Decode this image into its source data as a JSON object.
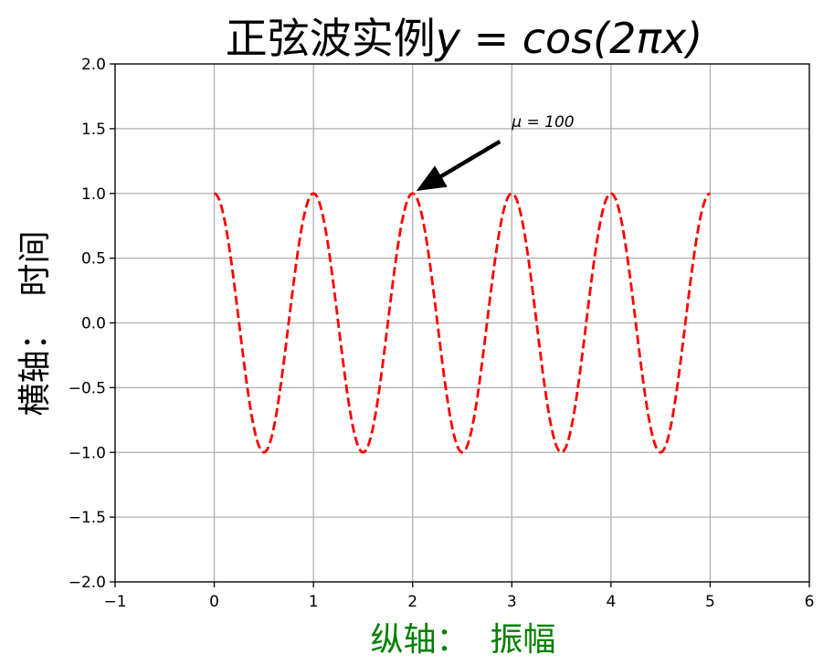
{
  "chart_data": {
    "type": "line",
    "title": "正弦波实例y = cos(2πx)",
    "title_parts": {
      "plain": "正弦波实例",
      "math": "y = cos(2πx)"
    },
    "xlabel": "纵轴：  振幅",
    "ylabel": "横轴：  时间",
    "xlim": [
      -1,
      6
    ],
    "ylim": [
      -2.0,
      2.0
    ],
    "xticks": [
      -1,
      0,
      1,
      2,
      3,
      4,
      5,
      6
    ],
    "xtick_labels": [
      "−1",
      "0",
      "1",
      "2",
      "3",
      "4",
      "5",
      "6"
    ],
    "yticks": [
      -2.0,
      -1.5,
      -1.0,
      -0.5,
      0.0,
      0.5,
      1.0,
      1.5,
      2.0
    ],
    "ytick_labels": [
      "−2.0",
      "−1.5",
      "−1.0",
      "−0.5",
      "0.0",
      "0.5",
      "1.0",
      "1.5",
      "2.0"
    ],
    "grid": true,
    "series": [
      {
        "function": "cos(2πx)",
        "x_range": [
          0,
          5
        ],
        "color": "#ff0000",
        "linestyle": "dashed",
        "points": [
          [
            0,
            1.0
          ],
          [
            0.25,
            0.0
          ],
          [
            0.5,
            -1.0
          ],
          [
            0.75,
            0.0
          ],
          [
            1,
            1.0
          ],
          [
            1.25,
            0.0
          ],
          [
            1.5,
            -1.0
          ],
          [
            1.75,
            0.0
          ],
          [
            2,
            1.0
          ],
          [
            2.25,
            0.0
          ],
          [
            2.5,
            -1.0
          ],
          [
            2.75,
            0.0
          ],
          [
            3,
            1.0
          ],
          [
            3.25,
            0.0
          ],
          [
            3.5,
            -1.0
          ],
          [
            3.75,
            0.0
          ],
          [
            4,
            1.0
          ],
          [
            4.25,
            0.0
          ],
          [
            4.5,
            -1.0
          ],
          [
            4.75,
            0.0
          ],
          [
            5,
            1.0
          ]
        ]
      }
    ],
    "annotations": [
      {
        "text": "μ = 100",
        "point": [
          2,
          1.0
        ],
        "text_position": [
          3.0,
          1.5
        ]
      }
    ],
    "colors": {
      "series": "#ff0000",
      "xlabel": "#008000",
      "grid": "#b0b0b0",
      "axes": "#000000",
      "arrow": "#000000"
    }
  }
}
